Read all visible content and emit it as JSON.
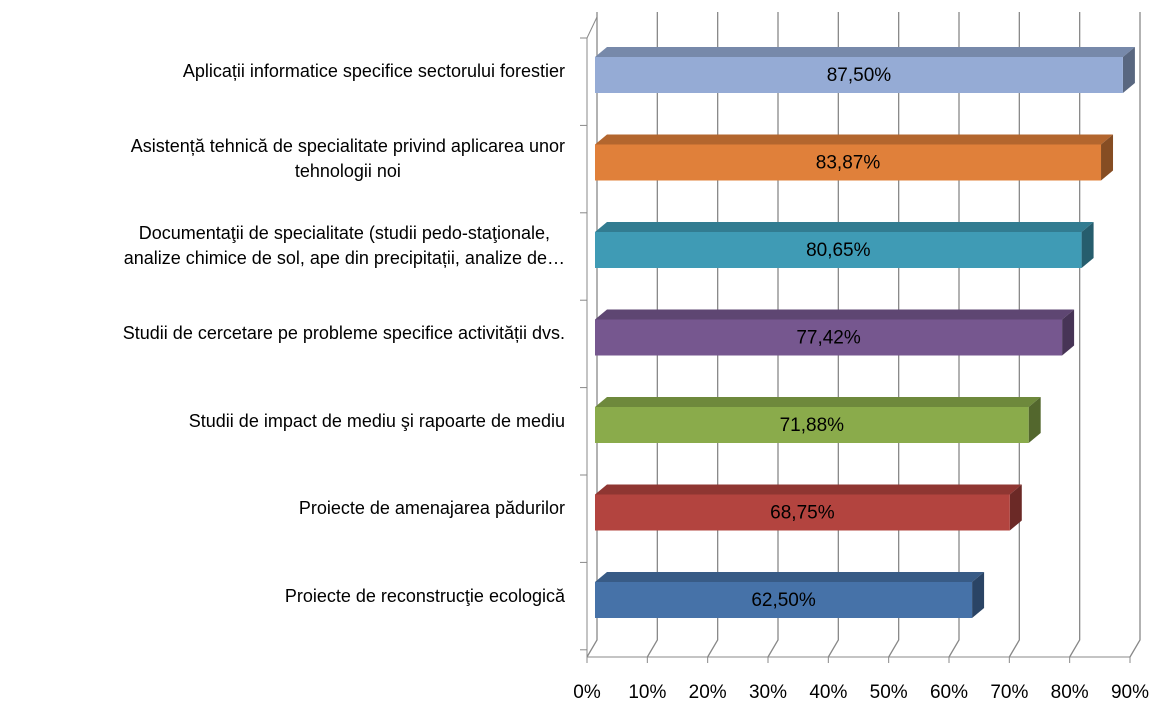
{
  "chart_data": {
    "type": "bar3d_horizontal",
    "categories": [
      "Aplicații informatice specifice sectorului forestier",
      "Asistență tehnică de specialitate privind aplicarea unor\ntehnologii noi",
      "Documentaţii de specialitate (studii pedo-staţionale,\nanalize chimice de sol, ape din precipitații, analize de…",
      "Studii de cercetare pe probleme specifice activității dvs.",
      "Studii de impact de mediu şi rapoarte de mediu",
      "Proiecte de amenajarea pădurilor",
      "Proiecte de reconstrucţie ecologică"
    ],
    "values": [
      87.5,
      83.87,
      80.65,
      77.42,
      71.88,
      68.75,
      62.5
    ],
    "value_labels": [
      "87,50%",
      "83,87%",
      "80,65%",
      "77,42%",
      "71,88%",
      "68,75%",
      "62,50%"
    ],
    "colors": [
      "#95abd5",
      "#e0803a",
      "#3f9bb5",
      "#76578f",
      "#8aab4b",
      "#b3443f",
      "#4672a8"
    ],
    "xlim": [
      0,
      90
    ],
    "xticks": [
      {
        "value": 0,
        "label": "0%"
      },
      {
        "value": 10,
        "label": "10%"
      },
      {
        "value": 20,
        "label": "20%"
      },
      {
        "value": 30,
        "label": "30%"
      },
      {
        "value": 40,
        "label": "40%"
      },
      {
        "value": 50,
        "label": "50%"
      },
      {
        "value": 60,
        "label": "60%"
      },
      {
        "value": 70,
        "label": "70%"
      },
      {
        "value": 80,
        "label": "80%"
      },
      {
        "value": 90,
        "label": "90%"
      }
    ],
    "grid": true
  }
}
